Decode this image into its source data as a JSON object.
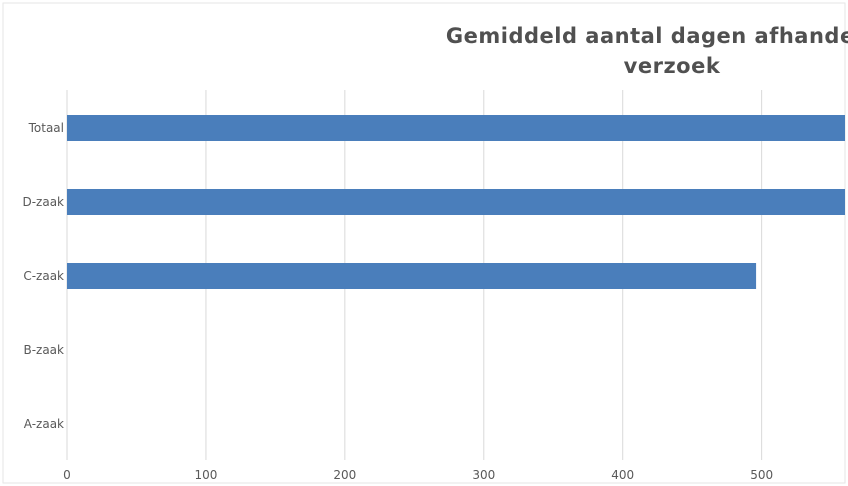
{
  "chart_data": {
    "type": "bar",
    "orientation": "horizontal",
    "title_lines": [
      "Gemiddeld aantal dagen afhandeli",
      "verzoek"
    ],
    "title": "Gemiddeld aantal dagen afhandeli verzoek",
    "categories": [
      "Totaal",
      "D-zaak",
      "C-zaak",
      "B-zaak",
      "A-zaak"
    ],
    "values": [
      560,
      560,
      496,
      0,
      0
    ],
    "xlim": [
      0,
      560
    ],
    "xticks": [
      0,
      100,
      200,
      300,
      400,
      500
    ],
    "xlabel": "",
    "ylabel": "",
    "grid": "vertical",
    "legend": "none",
    "bar_color": "#4a7ebb",
    "grid_color": "#d9d9d9"
  }
}
